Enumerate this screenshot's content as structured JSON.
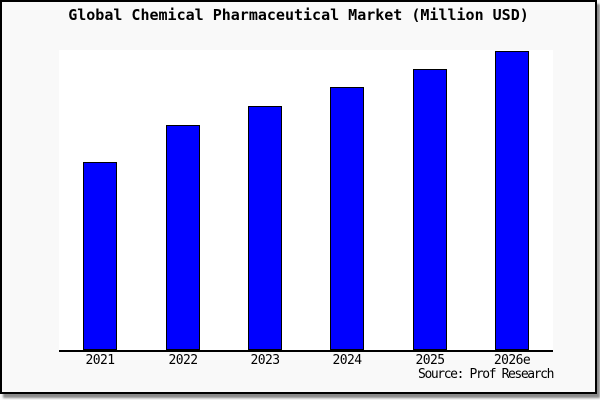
{
  "window": {
    "background_color": "#f9f9f9",
    "border_color": "#000000",
    "shadow_color": "#999999"
  },
  "chart_data": {
    "type": "bar",
    "title": "Global Chemical Pharmaceutical Market (Million USD)",
    "categories": [
      "2021",
      "2022",
      "2023",
      "2024",
      "2025",
      "2026e"
    ],
    "values": [
      188,
      225,
      244,
      263,
      281,
      299
    ],
    "xlabel": "",
    "ylabel": "",
    "ylim": [
      0,
      300
    ],
    "y_axis_visible": false,
    "grid": false,
    "legend": false,
    "plot_background": "#ffffff",
    "bar_color": "#0000ff",
    "bar_border_color": "#000000",
    "axis_line_color": "#000000"
  },
  "source": {
    "label": "Source: Prof Research"
  }
}
